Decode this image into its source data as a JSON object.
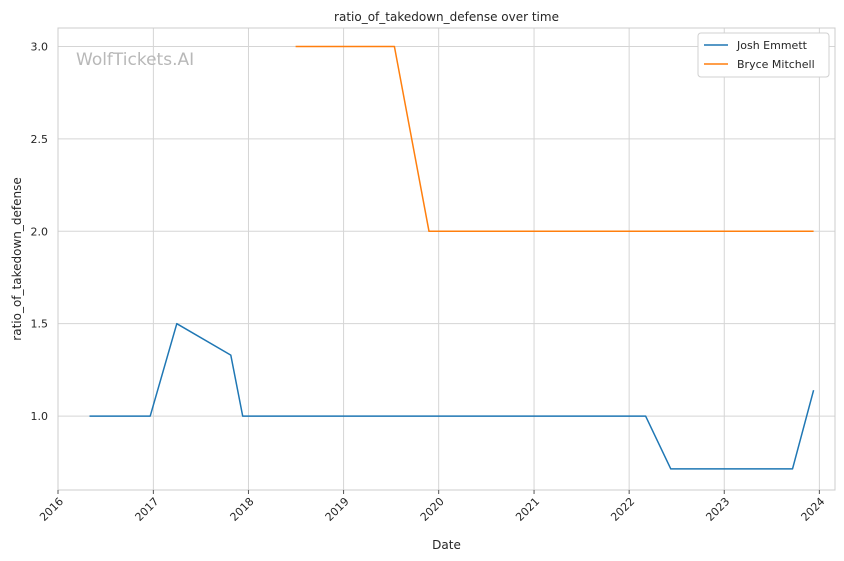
{
  "chart_data": {
    "type": "line",
    "title": "ratio_of_takedown_defense over time",
    "xlabel": "Date",
    "ylabel": "ratio_of_takedown_defense",
    "watermark": "WolfTickets.AI",
    "x_ticks": [
      "2016",
      "2017",
      "2018",
      "2019",
      "2020",
      "2021",
      "2022",
      "2023",
      "2024"
    ],
    "y_ticks": [
      "1.0",
      "1.5",
      "2.0",
      "2.5",
      "3.0"
    ],
    "xlim": [
      "2016-01-01",
      "2024-03-01"
    ],
    "ylim": [
      0.6,
      3.1
    ],
    "grid": true,
    "legend_position": "top-right",
    "series": [
      {
        "name": "Josh Emmett",
        "color": "#1f77b4",
        "points": [
          {
            "x": "2016-05-01",
            "y": 1.0
          },
          {
            "x": "2016-12-20",
            "y": 1.0
          },
          {
            "x": "2017-04-01",
            "y": 1.5
          },
          {
            "x": "2017-10-25",
            "y": 1.33
          },
          {
            "x": "2017-12-10",
            "y": 1.0
          },
          {
            "x": "2022-03-05",
            "y": 1.0
          },
          {
            "x": "2022-06-10",
            "y": 0.714
          },
          {
            "x": "2023-09-20",
            "y": 0.714
          },
          {
            "x": "2023-12-10",
            "y": 1.14
          }
        ]
      },
      {
        "name": "Bryce Mitchell",
        "color": "#ff7f0e",
        "points": [
          {
            "x": "2018-07-01",
            "y": 3.0
          },
          {
            "x": "2019-07-15",
            "y": 3.0
          },
          {
            "x": "2019-11-25",
            "y": 2.0
          },
          {
            "x": "2023-12-10",
            "y": 2.0
          }
        ]
      }
    ]
  }
}
